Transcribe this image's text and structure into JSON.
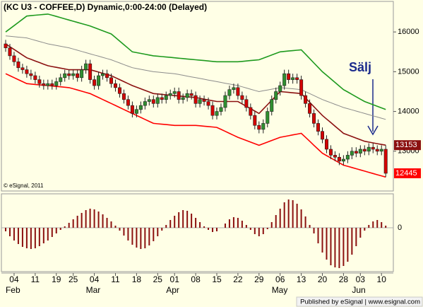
{
  "chart_data": {
    "type": "candlestick",
    "title": "(KC U3 - COFFEE,D) Dynamic,0:00-24:00 (Delayed)",
    "watermark": "© eSignal, 2011",
    "annotation": "Sälj",
    "footer": "Published by eSignal | www.esignal.com",
    "categories": [
      null,
      null,
      "04",
      null,
      null,
      null,
      null,
      "11",
      null,
      null,
      null,
      null,
      "19",
      null,
      null,
      null,
      "25",
      null,
      null,
      null,
      null,
      "04",
      null,
      null,
      null,
      null,
      "11",
      null,
      null,
      null,
      null,
      "18",
      null,
      null,
      null,
      null,
      "25",
      null,
      null,
      null,
      "01",
      null,
      null,
      null,
      null,
      "08",
      null,
      null,
      null,
      null,
      "15",
      null,
      null,
      null,
      null,
      "22",
      null,
      null,
      null,
      null,
      "29",
      null,
      null,
      null,
      null,
      "06",
      null,
      null,
      null,
      null,
      "13",
      null,
      null,
      null,
      null,
      "20",
      null,
      null,
      null,
      null,
      "28",
      null,
      null,
      null,
      "03",
      null,
      null,
      null,
      null,
      "10",
      null
    ],
    "month_labels": [
      null,
      null,
      "Feb",
      null,
      null,
      null,
      null,
      null,
      null,
      null,
      null,
      null,
      null,
      null,
      null,
      null,
      null,
      null,
      null,
      null,
      null,
      "Mar",
      null,
      null,
      null,
      null,
      null,
      null,
      null,
      null,
      null,
      null,
      null,
      null,
      null,
      null,
      null,
      null,
      null,
      null,
      "Apr",
      null,
      null,
      null,
      null,
      null,
      null,
      null,
      null,
      null,
      null,
      null,
      null,
      null,
      null,
      null,
      null,
      null,
      null,
      null,
      null,
      null,
      null,
      null,
      null,
      "May",
      null,
      null,
      null,
      null,
      null,
      null,
      null,
      null,
      null,
      null,
      null,
      null,
      null,
      null,
      null,
      null,
      null,
      null,
      "Jun",
      null,
      null,
      null,
      null,
      null,
      null
    ],
    "open": [
      15700,
      15600,
      15400,
      15250,
      15100,
      15050,
      14950,
      14900,
      14800,
      14700,
      14650,
      14700,
      14650,
      14750,
      14850,
      14950,
      14900,
      14950,
      14850,
      15050,
      15200,
      14800,
      14650,
      14900,
      14950,
      14850,
      14700,
      14600,
      14450,
      14300,
      14150,
      13950,
      14050,
      14150,
      14250,
      14300,
      14200,
      14350,
      14300,
      14400,
      14450,
      14500,
      14300,
      14350,
      14450,
      14400,
      14200,
      14300,
      14250,
      14150,
      13900,
      14000,
      14100,
      14400,
      14550,
      14600,
      14400,
      14300,
      14100,
      13900,
      13650,
      13550,
      13700,
      14000,
      14300,
      14500,
      14650,
      14950,
      14800,
      14850,
      14800,
      14400,
      14200,
      13950,
      13700,
      13500,
      13300,
      13050,
      12900,
      12850,
      12750,
      12800,
      12900,
      13000,
      12950,
      13050,
      13000,
      13100,
      13050,
      13000,
      13050
    ],
    "high": [
      15800,
      15700,
      15500,
      15350,
      15200,
      15150,
      15050,
      15000,
      14900,
      14800,
      14800,
      14800,
      14850,
      14950,
      15050,
      15050,
      15050,
      15050,
      15150,
      15300,
      15300,
      14900,
      15000,
      15050,
      15050,
      14950,
      14800,
      14700,
      14550,
      14400,
      14250,
      14150,
      14250,
      14350,
      14400,
      14400,
      14450,
      14450,
      14500,
      14550,
      14600,
      14600,
      14450,
      14550,
      14550,
      14500,
      14400,
      14400,
      14350,
      14250,
      14100,
      14200,
      14500,
      14650,
      14700,
      14700,
      14500,
      14400,
      14200,
      14000,
      13750,
      13800,
      14100,
      14400,
      14600,
      14750,
      15050,
      15050,
      14950,
      14950,
      14900,
      14500,
      14300,
      14050,
      13800,
      13600,
      13400,
      13150,
      13000,
      12950,
      12900,
      13000,
      13100,
      13100,
      13150,
      13150,
      13200,
      13200,
      13150,
      13150,
      13150
    ],
    "low": [
      15500,
      15300,
      15150,
      15000,
      14950,
      14850,
      14800,
      14700,
      14600,
      14550,
      14550,
      14550,
      14550,
      14650,
      14750,
      14800,
      14800,
      14750,
      14750,
      14950,
      14700,
      14550,
      14550,
      14800,
      14750,
      14600,
      14500,
      14350,
      14200,
      14050,
      13850,
      13850,
      13950,
      14050,
      14150,
      14100,
      14100,
      14200,
      14200,
      14300,
      14350,
      14200,
      14200,
      14250,
      14300,
      14100,
      14100,
      14150,
      14050,
      13800,
      13800,
      13900,
      14000,
      14300,
      14450,
      14300,
      14200,
      14000,
      13800,
      13550,
      13450,
      13450,
      13600,
      13900,
      14200,
      14400,
      14550,
      14700,
      14700,
      14700,
      14300,
      14100,
      13850,
      13600,
      13400,
      13200,
      12950,
      12800,
      12750,
      12650,
      12650,
      12700,
      12800,
      12850,
      12850,
      12900,
      12900,
      12950,
      12900,
      12900,
      12350
    ],
    "close": [
      15600,
      15400,
      15250,
      15100,
      15050,
      14950,
      14900,
      14800,
      14700,
      14650,
      14700,
      14650,
      14750,
      14850,
      14950,
      14900,
      14950,
      14850,
      15050,
      15200,
      14800,
      14650,
      14900,
      14950,
      14850,
      14700,
      14600,
      14450,
      14300,
      14150,
      13950,
      14050,
      14150,
      14250,
      14300,
      14200,
      14350,
      14300,
      14400,
      14450,
      14500,
      14300,
      14350,
      14450,
      14400,
      14200,
      14300,
      14250,
      14150,
      13900,
      14000,
      14100,
      14400,
      14550,
      14600,
      14400,
      14300,
      14100,
      13900,
      13650,
      13550,
      13700,
      14000,
      14300,
      14500,
      14650,
      14950,
      14800,
      14850,
      14800,
      14400,
      14200,
      13950,
      13700,
      13500,
      13300,
      13050,
      12900,
      12850,
      12750,
      12800,
      12900,
      13000,
      12950,
      13050,
      13000,
      13100,
      13050,
      13000,
      13050,
      12445
    ],
    "up_color": "#2f8f2f",
    "down_color": "#d40000",
    "close_marker_color": "#ff0000",
    "overlays": [
      {
        "color": "#1e9a1e",
        "values": [
          16000,
          16080,
          16160,
          16240,
          16320,
          16400,
          16410,
          16420,
          16430,
          16440,
          16450,
          16420,
          16390,
          16360,
          16330,
          16300,
          16270,
          16240,
          16210,
          16180,
          16150,
          16110,
          16070,
          16030,
          15990,
          15950,
          15860,
          15770,
          15680,
          15590,
          15500,
          15480,
          15460,
          15440,
          15420,
          15400,
          15390,
          15380,
          15370,
          15360,
          15350,
          15340,
          15330,
          15320,
          15310,
          15300,
          15290,
          15280,
          15270,
          15260,
          15250,
          15250,
          15250,
          15250,
          15250,
          15250,
          15260,
          15270,
          15280,
          15290,
          15300,
          15340,
          15380,
          15420,
          15460,
          15500,
          15510,
          15520,
          15530,
          15540,
          15550,
          15440,
          15330,
          15220,
          15110,
          15000,
          14910,
          14820,
          14730,
          14640,
          14550,
          14490,
          14430,
          14370,
          14310,
          14250,
          14210,
          14170,
          14130,
          14090,
          14050
        ]
      },
      {
        "color": "#8c8c8c",
        "values": [
          15900,
          15890,
          15880,
          15870,
          15860,
          15850,
          15820,
          15790,
          15760,
          15730,
          15700,
          15680,
          15660,
          15640,
          15620,
          15600,
          15570,
          15540,
          15510,
          15480,
          15450,
          15420,
          15390,
          15360,
          15330,
          15300,
          15260,
          15220,
          15180,
          15140,
          15100,
          15080,
          15060,
          15040,
          15020,
          15000,
          14990,
          14980,
          14970,
          14960,
          14950,
          14930,
          14910,
          14890,
          14870,
          14850,
          14830,
          14810,
          14790,
          14770,
          14750,
          14730,
          14710,
          14690,
          14670,
          14650,
          14620,
          14590,
          14560,
          14530,
          14500,
          14520,
          14540,
          14560,
          14580,
          14600,
          14590,
          14580,
          14570,
          14560,
          14550,
          14500,
          14450,
          14400,
          14350,
          14300,
          14260,
          14220,
          14180,
          14140,
          14100,
          14070,
          14040,
          14010,
          13980,
          13950,
          13920,
          13890,
          13860,
          13830,
          13800
        ]
      },
      {
        "color": "#8b1010",
        "values": [
          15700,
          15630,
          15560,
          15490,
          15420,
          15350,
          15310,
          15270,
          15230,
          15190,
          15150,
          15130,
          15110,
          15090,
          15070,
          15050,
          15050,
          15050,
          15050,
          15050,
          15050,
          15020,
          14990,
          14960,
          14930,
          14900,
          14850,
          14800,
          14750,
          14700,
          14650,
          14610,
          14570,
          14530,
          14490,
          14450,
          14440,
          14430,
          14420,
          14410,
          14400,
          14390,
          14380,
          14370,
          14360,
          14350,
          14330,
          14310,
          14290,
          14270,
          14250,
          14250,
          14250,
          14250,
          14250,
          14250,
          14190,
          14130,
          14070,
          14010,
          13950,
          14060,
          14170,
          14280,
          14390,
          14500,
          14490,
          14480,
          14470,
          14460,
          14450,
          14340,
          14230,
          14120,
          14010,
          13900,
          13810,
          13720,
          13630,
          13540,
          13450,
          13410,
          13370,
          13330,
          13290,
          13250,
          13230,
          13210,
          13190,
          13170,
          13153
        ]
      },
      {
        "color": "#ff0000",
        "values": [
          14950,
          14900,
          14850,
          14800,
          14750,
          14700,
          14690,
          14680,
          14670,
          14660,
          14650,
          14640,
          14630,
          14620,
          14610,
          14600,
          14570,
          14540,
          14510,
          14480,
          14450,
          14400,
          14350,
          14300,
          14250,
          14200,
          14150,
          14100,
          14050,
          14000,
          13950,
          13900,
          13850,
          13800,
          13750,
          13700,
          13690,
          13680,
          13670,
          13660,
          13650,
          13650,
          13650,
          13650,
          13650,
          13650,
          13640,
          13630,
          13620,
          13610,
          13600,
          13550,
          13500,
          13450,
          13400,
          13350,
          13310,
          13270,
          13230,
          13190,
          13150,
          13190,
          13230,
          13270,
          13310,
          13350,
          13370,
          13390,
          13410,
          13430,
          13450,
          13350,
          13250,
          13150,
          13050,
          12950,
          12890,
          12830,
          12770,
          12710,
          12650,
          12620,
          12590,
          12560,
          12530,
          12500,
          12470,
          12440,
          12410,
          12380,
          12350
        ]
      }
    ],
    "ylim": [
      12000,
      16750
    ],
    "yticks": [
      13000,
      14000,
      15000,
      16000
    ],
    "oscillator": {
      "type": "bar",
      "color": "#8b1010",
      "ylim": [
        -610,
        470
      ],
      "yticks": [
        0
      ],
      "values": [
        -50,
        -120,
        -180,
        -230,
        -270,
        -290,
        -300,
        -290,
        -260,
        -220,
        -180,
        -130,
        -80,
        -30,
        20,
        70,
        120,
        170,
        210,
        250,
        270,
        260,
        230,
        190,
        140,
        90,
        30,
        -40,
        -110,
        -180,
        -240,
        -280,
        -300,
        -290,
        -250,
        -190,
        -120,
        -40,
        40,
        110,
        170,
        220,
        250,
        240,
        200,
        140,
        80,
        20,
        -30,
        -60,
        -50,
        0,
        60,
        120,
        150,
        140,
        100,
        40,
        -30,
        -90,
        -120,
        -90,
        -20,
        80,
        180,
        270,
        360,
        400,
        390,
        340,
        260,
        160,
        40,
        -80,
        -220,
        -350,
        -450,
        -530,
        -560,
        -570,
        -540,
        -480,
        -380,
        -260,
        -140,
        -40,
        40,
        90,
        110,
        80,
        30
      ]
    }
  }
}
